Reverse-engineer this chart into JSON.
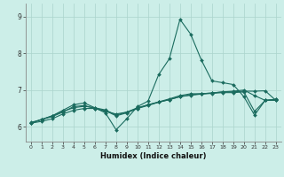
{
  "title": "",
  "xlabel": "Humidex (Indice chaleur)",
  "bg_color": "#cceee8",
  "line_color": "#1a6b5e",
  "grid_color": "#aad4cc",
  "xlim": [
    -0.5,
    23.5
  ],
  "ylim": [
    5.6,
    9.35
  ],
  "yticks": [
    6,
    7,
    8,
    9
  ],
  "x": [
    0,
    1,
    2,
    3,
    4,
    5,
    6,
    7,
    8,
    9,
    10,
    11,
    12,
    13,
    14,
    15,
    16,
    17,
    18,
    19,
    20,
    21,
    22,
    23
  ],
  "line1": [
    6.1,
    6.2,
    6.3,
    6.45,
    6.6,
    6.65,
    6.52,
    6.38,
    5.92,
    6.22,
    6.55,
    6.7,
    7.42,
    7.85,
    8.92,
    8.52,
    7.82,
    7.25,
    7.2,
    7.15,
    6.82,
    6.32,
    6.72,
    6.72
  ],
  "line2": [
    6.12,
    6.2,
    6.3,
    6.42,
    6.52,
    6.56,
    6.52,
    6.46,
    6.32,
    6.4,
    6.52,
    6.6,
    6.68,
    6.76,
    6.85,
    6.9,
    6.9,
    6.92,
    6.95,
    6.97,
    7.0,
    6.85,
    6.72,
    6.75
  ],
  "line3": [
    6.1,
    6.2,
    6.28,
    6.4,
    6.55,
    6.58,
    6.5,
    6.42,
    6.35,
    6.4,
    6.5,
    6.6,
    6.67,
    6.74,
    6.82,
    6.87,
    6.9,
    6.92,
    6.95,
    6.95,
    6.97,
    6.97,
    6.98,
    6.72
  ],
  "line4": [
    6.1,
    6.15,
    6.22,
    6.35,
    6.45,
    6.5,
    6.5,
    6.44,
    6.3,
    6.38,
    6.5,
    6.58,
    6.67,
    6.74,
    6.82,
    6.86,
    6.89,
    6.91,
    6.93,
    6.93,
    6.95,
    6.42,
    6.72,
    6.75
  ]
}
